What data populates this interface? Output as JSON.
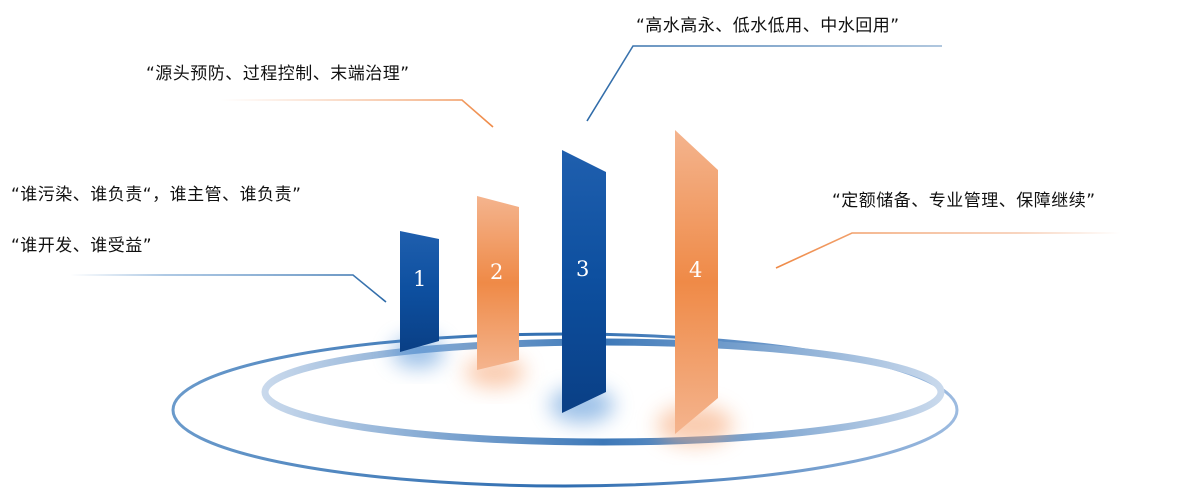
{
  "panels": [
    {
      "number": "1",
      "color": "#0b4a96"
    },
    {
      "number": "2",
      "color": "#f0a070"
    },
    {
      "number": "3",
      "color": "#0b4a96"
    },
    {
      "number": "4",
      "color": "#f0a070"
    }
  ],
  "labels": {
    "label_1a": "“谁污染、谁负责“，谁主管、谁负责”",
    "label_1b": "“谁开发、谁受益”",
    "label_2": "“源头预防、过程控制、末端治理”",
    "label_3": "“高水高永、低水低用、中水回用”",
    "label_4": "“定额储备、专业管理、保障继续”"
  },
  "colors": {
    "blue": "#0b4a96",
    "orange": "#ef8a47",
    "ring": "#3f78b4"
  }
}
